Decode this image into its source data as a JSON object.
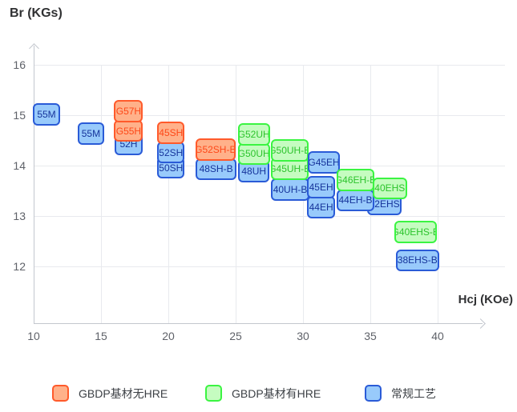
{
  "titles": {
    "y_axis": "Br (KGs)",
    "x_axis": "Hcj (KOe)"
  },
  "colors": {
    "orange": {
      "fill": "#ffb18a",
      "border": "#ff5a2b",
      "text": "#fe4818"
    },
    "green": {
      "fill": "#c5fcc0",
      "border": "#3bf442",
      "text": "#2cc32c"
    },
    "blue": {
      "fill": "#98cafb",
      "border": "#2a5bd7",
      "text": "#16349b"
    },
    "grid": "#e8eaee",
    "axis": "#c3c7ce",
    "tick_text": "#5f6269",
    "title_text": "#303133",
    "legend_text": "#3c4045"
  },
  "chart_data": {
    "type": "scatter",
    "title": "",
    "xlabel": "Hcj (KOe)",
    "ylabel": "Br (KGs)",
    "xlim": [
      10,
      43.3
    ],
    "ylim": [
      10.87,
      16.38
    ],
    "x_ticks": [
      10,
      15,
      20,
      25,
      30,
      35,
      40
    ],
    "y_ticks": [
      12,
      13,
      14,
      15,
      16
    ],
    "grid": true,
    "legend_position": "bottom",
    "box_h": 0.44,
    "items": [
      {
        "label": "55M",
        "series": "blue",
        "x": 10.95,
        "y": 15.02,
        "w": 2.0,
        "z": 10
      },
      {
        "label": "55M",
        "series": "blue",
        "x": 14.25,
        "y": 14.63,
        "w": 2.0,
        "z": 10
      },
      {
        "label": "G57H",
        "series": "orange",
        "x": 17.05,
        "y": 15.08,
        "w": 2.15,
        "z": 22
      },
      {
        "label": "G55H",
        "series": "orange",
        "x": 17.05,
        "y": 14.69,
        "w": 2.15,
        "z": 21
      },
      {
        "label": "52H",
        "series": "blue",
        "x": 17.05,
        "y": 14.43,
        "w": 2.1,
        "z": 11
      },
      {
        "label": "45SH",
        "series": "orange",
        "x": 20.2,
        "y": 14.65,
        "w": 2.05,
        "z": 20
      },
      {
        "label": "52SH",
        "series": "blue",
        "x": 20.2,
        "y": 14.26,
        "w": 2.05,
        "z": 11
      },
      {
        "label": "50SH",
        "series": "blue",
        "x": 20.2,
        "y": 13.96,
        "w": 2.05,
        "z": 10
      },
      {
        "label": "G52SH-B",
        "series": "orange",
        "x": 23.5,
        "y": 14.32,
        "w": 2.95,
        "z": 20
      },
      {
        "label": "48SH-B",
        "series": "blue",
        "x": 23.55,
        "y": 13.93,
        "w": 3.0,
        "z": 10
      },
      {
        "label": "G52UH",
        "series": "green",
        "x": 26.35,
        "y": 14.62,
        "w": 2.4,
        "z": 31
      },
      {
        "label": "G50UH",
        "series": "green",
        "x": 26.35,
        "y": 14.23,
        "w": 2.4,
        "z": 30
      },
      {
        "label": "48UH",
        "series": "blue",
        "x": 26.35,
        "y": 13.89,
        "w": 2.3,
        "z": 11
      },
      {
        "label": "G50UH-B",
        "series": "green",
        "x": 29.0,
        "y": 14.3,
        "w": 2.8,
        "z": 31
      },
      {
        "label": "G45UH-B",
        "series": "green",
        "x": 29.0,
        "y": 13.94,
        "w": 2.8,
        "z": 30
      },
      {
        "label": "G45EH",
        "series": "blue",
        "x": 31.55,
        "y": 14.06,
        "w": 2.4,
        "z": 40
      },
      {
        "label": "40UH-B",
        "series": "blue",
        "x": 29.05,
        "y": 13.52,
        "w": 2.85,
        "z": 12
      },
      {
        "label": "45EH",
        "series": "blue",
        "x": 31.35,
        "y": 13.57,
        "w": 2.1,
        "z": 41
      },
      {
        "label": "44EH",
        "series": "blue",
        "x": 31.35,
        "y": 13.17,
        "w": 2.1,
        "z": 40
      },
      {
        "label": "G46EH-B",
        "series": "green",
        "x": 33.9,
        "y": 13.71,
        "w": 2.8,
        "z": 50
      },
      {
        "label": "44EH-B",
        "series": "blue",
        "x": 33.9,
        "y": 13.31,
        "w": 2.75,
        "z": 20
      },
      {
        "label": "40EHS",
        "series": "green",
        "x": 36.45,
        "y": 13.55,
        "w": 2.55,
        "z": 49
      },
      {
        "label": "42EHS",
        "series": "blue",
        "x": 36.05,
        "y": 13.23,
        "w": 2.6,
        "z": 10
      },
      {
        "label": "G40EHS-B",
        "series": "green",
        "x": 38.35,
        "y": 12.68,
        "w": 3.15,
        "z": 30
      },
      {
        "label": "38EHS-B",
        "series": "blue",
        "x": 38.5,
        "y": 12.12,
        "w": 3.2,
        "z": 10
      }
    ]
  },
  "legend": {
    "items": [
      {
        "label": "GBDP基材无HRE",
        "series": "orange",
        "key": "gbdp-no-hre"
      },
      {
        "label": "GBDP基材有HRE",
        "series": "green",
        "key": "gbdp-with-hre"
      },
      {
        "label": "常规工艺",
        "series": "blue",
        "key": "standard-process"
      }
    ]
  }
}
